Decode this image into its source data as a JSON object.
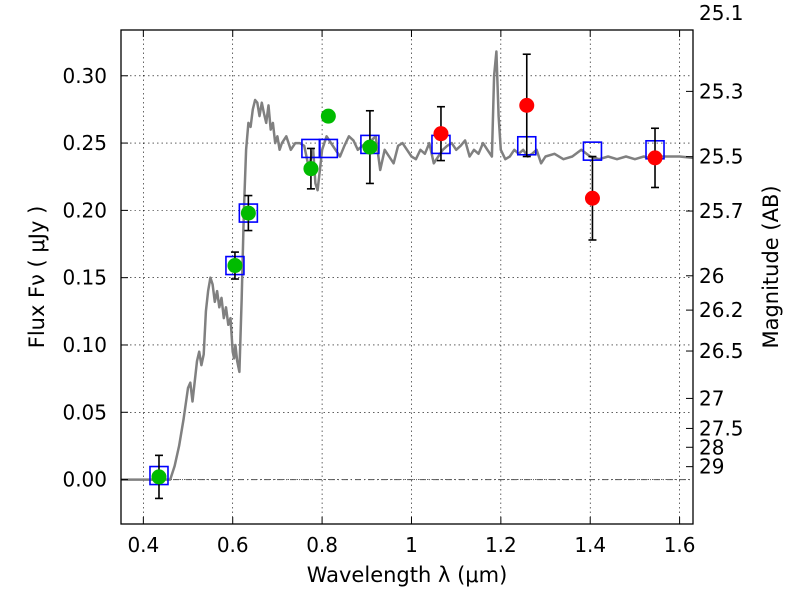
{
  "chart_data": {
    "type": "scatter",
    "xlabel": "Wavelength  λ (μm)",
    "ylabel": "Flux  Fν  ( μJy )",
    "ylabel_right": "Magnitude (AB)",
    "xlim": [
      0.35,
      1.63
    ],
    "ylim": [
      -0.033,
      0.334
    ],
    "grid": true,
    "colors": {
      "model": "#808080",
      "green": "#00bb00",
      "red": "#ff0000",
      "box": "#0000ff",
      "frame": "#000000",
      "zero_line": "#555555"
    },
    "x_ticks": [
      0.4,
      0.6,
      0.8,
      1.0,
      1.2,
      1.4,
      1.6
    ],
    "x_tick_labels": [
      "0.4",
      "0.6",
      "0.8",
      "1",
      "1.2",
      "1.4",
      "1.6"
    ],
    "y_ticks": [
      0.0,
      0.05,
      0.1,
      0.15,
      0.2,
      0.25,
      0.3
    ],
    "y_tick_labels": [
      "0.00",
      "0.05",
      "0.10",
      "0.15",
      "0.20",
      "0.25",
      "0.30"
    ],
    "right_ticks": [
      {
        "label": "25.1",
        "flux": 0.3467
      },
      {
        "label": "25.3",
        "flux": 0.2884
      },
      {
        "label": "25.5",
        "flux": 0.2399
      },
      {
        "label": "25.7",
        "flux": 0.1995
      },
      {
        "label": "26",
        "flux": 0.1514
      },
      {
        "label": "26.2",
        "flux": 0.1259
      },
      {
        "label": "26.5",
        "flux": 0.0955
      },
      {
        "label": "27",
        "flux": 0.0603
      },
      {
        "label": "27.5",
        "flux": 0.038
      },
      {
        "label": "28",
        "flux": 0.024
      },
      {
        "label": "29",
        "flux": 0.0096
      }
    ],
    "model_x": [
      0.35,
      0.46,
      0.47,
      0.48,
      0.49,
      0.5,
      0.505,
      0.51,
      0.52,
      0.525,
      0.53,
      0.535,
      0.54,
      0.545,
      0.55,
      0.555,
      0.56,
      0.565,
      0.57,
      0.575,
      0.58,
      0.585,
      0.59,
      0.595,
      0.6,
      0.603,
      0.606,
      0.61,
      0.615,
      0.62,
      0.625,
      0.63,
      0.635,
      0.64,
      0.645,
      0.65,
      0.655,
      0.66,
      0.665,
      0.67,
      0.675,
      0.68,
      0.685,
      0.69,
      0.695,
      0.7,
      0.705,
      0.71,
      0.72,
      0.73,
      0.74,
      0.75,
      0.76,
      0.77,
      0.78,
      0.785,
      0.79,
      0.795,
      0.8,
      0.81,
      0.82,
      0.83,
      0.84,
      0.85,
      0.86,
      0.87,
      0.88,
      0.89,
      0.9,
      0.91,
      0.92,
      0.93,
      0.94,
      0.95,
      0.96,
      0.97,
      0.98,
      0.99,
      1.0,
      1.01,
      1.02,
      1.03,
      1.04,
      1.05,
      1.06,
      1.07,
      1.08,
      1.09,
      1.1,
      1.11,
      1.12,
      1.13,
      1.14,
      1.15,
      1.16,
      1.17,
      1.18,
      1.185,
      1.19,
      1.195,
      1.2,
      1.21,
      1.22,
      1.23,
      1.24,
      1.25,
      1.26,
      1.27,
      1.28,
      1.29,
      1.3,
      1.32,
      1.34,
      1.36,
      1.38,
      1.4,
      1.42,
      1.44,
      1.46,
      1.48,
      1.5,
      1.52,
      1.54,
      1.56,
      1.58,
      1.6,
      1.63
    ],
    "model_y": [
      0.0,
      0.0,
      0.01,
      0.025,
      0.045,
      0.068,
      0.072,
      0.058,
      0.088,
      0.095,
      0.085,
      0.093,
      0.125,
      0.14,
      0.15,
      0.145,
      0.132,
      0.14,
      0.128,
      0.135,
      0.12,
      0.128,
      0.115,
      0.12,
      0.095,
      0.09,
      0.1,
      0.088,
      0.08,
      0.135,
      0.2,
      0.245,
      0.265,
      0.262,
      0.275,
      0.282,
      0.28,
      0.27,
      0.28,
      0.272,
      0.265,
      0.278,
      0.26,
      0.265,
      0.25,
      0.255,
      0.245,
      0.25,
      0.255,
      0.245,
      0.25,
      0.25,
      0.248,
      0.232,
      0.245,
      0.22,
      0.215,
      0.23,
      0.245,
      0.255,
      0.25,
      0.245,
      0.24,
      0.248,
      0.255,
      0.252,
      0.245,
      0.248,
      0.25,
      0.252,
      0.255,
      0.23,
      0.245,
      0.24,
      0.235,
      0.248,
      0.25,
      0.245,
      0.24,
      0.238,
      0.245,
      0.242,
      0.25,
      0.235,
      0.24,
      0.245,
      0.248,
      0.25,
      0.245,
      0.248,
      0.252,
      0.24,
      0.245,
      0.242,
      0.25,
      0.245,
      0.24,
      0.3,
      0.318,
      0.27,
      0.245,
      0.238,
      0.24,
      0.245,
      0.242,
      0.245,
      0.24,
      0.242,
      0.245,
      0.235,
      0.24,
      0.242,
      0.238,
      0.24,
      0.245,
      0.24,
      0.238,
      0.24,
      0.238,
      0.24,
      0.238,
      0.24,
      0.238,
      0.24,
      0.24,
      0.24,
      0.239
    ],
    "boxes": [
      {
        "x": 0.435,
        "y": 0.003
      },
      {
        "x": 0.605,
        "y": 0.159
      },
      {
        "x": 0.635,
        "y": 0.198
      },
      {
        "x": 0.775,
        "y": 0.246
      },
      {
        "x": 0.814,
        "y": 0.246
      },
      {
        "x": 0.907,
        "y": 0.249
      },
      {
        "x": 1.066,
        "y": 0.249
      },
      {
        "x": 1.258,
        "y": 0.248
      },
      {
        "x": 1.405,
        "y": 0.244
      },
      {
        "x": 1.545,
        "y": 0.245
      }
    ],
    "points": [
      {
        "x": 0.435,
        "y": 0.002,
        "err": 0.016,
        "color": "green"
      },
      {
        "x": 0.605,
        "y": 0.159,
        "err": 0.01,
        "color": "green"
      },
      {
        "x": 0.635,
        "y": 0.198,
        "err": 0.013,
        "color": "green"
      },
      {
        "x": 0.775,
        "y": 0.231,
        "err": 0.015,
        "color": "green"
      },
      {
        "x": 0.814,
        "y": 0.27,
        "err": 0.0,
        "color": "green"
      },
      {
        "x": 0.907,
        "y": 0.247,
        "err": 0.027,
        "color": "green"
      },
      {
        "x": 1.066,
        "y": 0.257,
        "err": 0.02,
        "color": "red"
      },
      {
        "x": 1.258,
        "y": 0.278,
        "err": 0.038,
        "color": "red"
      },
      {
        "x": 1.405,
        "y": 0.209,
        "err": 0.031,
        "color": "red"
      },
      {
        "x": 1.545,
        "y": 0.239,
        "err": 0.022,
        "color": "red"
      }
    ]
  }
}
